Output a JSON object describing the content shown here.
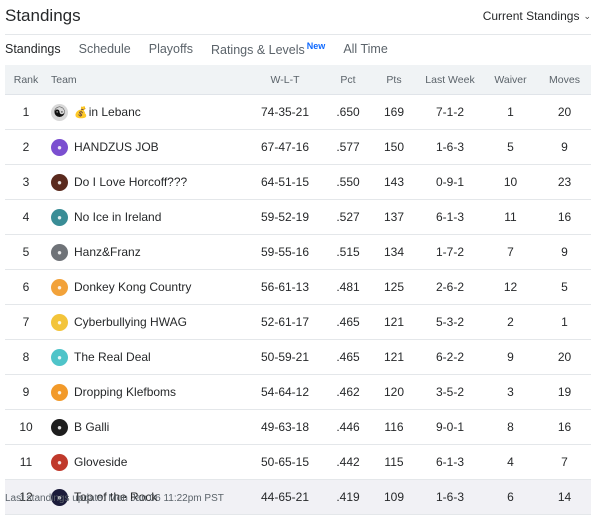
{
  "header": {
    "title": "Standings",
    "dropdown_label": "Current Standings"
  },
  "tabs": [
    {
      "label": "Standings",
      "active": true
    },
    {
      "label": "Schedule"
    },
    {
      "label": "Playoffs"
    },
    {
      "label": "Ratings & Levels",
      "badge": "New"
    },
    {
      "label": "All Time"
    }
  ],
  "table": {
    "columns": [
      "Rank",
      "Team",
      "W-L-T",
      "Pct",
      "Pts",
      "Last Week",
      "Waiver",
      "Moves"
    ],
    "rows": [
      {
        "rank": "1",
        "team": "in Lebanc",
        "wlt": "74-35-21",
        "pct": ".650",
        "pts": "169",
        "last": "7-1-2",
        "waiver": "1",
        "moves": "20",
        "avatar_color": "#d8d8d8",
        "avatar_icon": "yin-yang-icon"
      },
      {
        "rank": "2",
        "team": "HANDZUS JOB",
        "wlt": "67-47-16",
        "pct": ".577",
        "pts": "150",
        "last": "1-6-3",
        "waiver": "5",
        "moves": "9",
        "avatar_color": "#7b4fd0",
        "avatar_icon": "team-logo-icon"
      },
      {
        "rank": "3",
        "team": "Do I Love Horcoff???",
        "wlt": "64-51-15",
        "pct": ".550",
        "pts": "143",
        "last": "0-9-1",
        "waiver": "10",
        "moves": "23",
        "avatar_color": "#5a2a1e",
        "avatar_icon": "team-logo-icon"
      },
      {
        "rank": "4",
        "team": "No Ice in Ireland",
        "wlt": "59-52-19",
        "pct": ".527",
        "pts": "137",
        "last": "6-1-3",
        "waiver": "11",
        "moves": "16",
        "avatar_color": "#3a8d96",
        "avatar_icon": "team-logo-icon"
      },
      {
        "rank": "5",
        "team": "Hanz&Franz",
        "wlt": "59-55-16",
        "pct": ".515",
        "pts": "134",
        "last": "1-7-2",
        "waiver": "7",
        "moves": "9",
        "avatar_color": "#6f7378",
        "avatar_icon": "team-logo-icon"
      },
      {
        "rank": "6",
        "team": "Donkey Kong Country",
        "wlt": "56-61-13",
        "pct": ".481",
        "pts": "125",
        "last": "2-6-2",
        "waiver": "12",
        "moves": "5",
        "avatar_color": "#f2a23a",
        "avatar_icon": "team-logo-icon"
      },
      {
        "rank": "7",
        "team": "Cyberbullying HWAG",
        "wlt": "52-61-17",
        "pct": ".465",
        "pts": "121",
        "last": "5-3-2",
        "waiver": "2",
        "moves": "1",
        "avatar_color": "#f3c43a",
        "avatar_icon": "team-logo-icon"
      },
      {
        "rank": "8",
        "team": "The Real Deal",
        "wlt": "50-59-21",
        "pct": ".465",
        "pts": "121",
        "last": "6-2-2",
        "waiver": "9",
        "moves": "20",
        "avatar_color": "#4fc4c9",
        "avatar_icon": "team-logo-icon"
      },
      {
        "rank": "9",
        "team": "Dropping Klefboms",
        "wlt": "54-64-12",
        "pct": ".462",
        "pts": "120",
        "last": "3-5-2",
        "waiver": "3",
        "moves": "19",
        "avatar_color": "#f29a2a",
        "avatar_icon": "team-logo-icon"
      },
      {
        "rank": "10",
        "team": "B Galli",
        "wlt": "49-63-18",
        "pct": ".446",
        "pts": "116",
        "last": "9-0-1",
        "waiver": "8",
        "moves": "16",
        "avatar_color": "#1e1e1e",
        "avatar_icon": "team-logo-icon"
      },
      {
        "rank": "11",
        "team": "Gloveside",
        "wlt": "50-65-15",
        "pct": ".442",
        "pts": "115",
        "last": "6-1-3",
        "waiver": "4",
        "moves": "7",
        "avatar_color": "#c0392b",
        "avatar_icon": "team-logo-icon"
      },
      {
        "rank": "12",
        "team": "Top of the Rock",
        "wlt": "44-65-21",
        "pct": ".419",
        "pts": "109",
        "last": "1-6-3",
        "waiver": "6",
        "moves": "14",
        "avatar_color": "#1b1b3a",
        "avatar_icon": "team-logo-icon",
        "highlight": true
      }
    ]
  },
  "footer": {
    "text": "Last standings update: Mon Jan 06 11:22pm PST"
  },
  "colors": {
    "accent": "#0f69ff",
    "header_bg": "#f0f3f5",
    "highlight_row": "#f1f1f5"
  }
}
